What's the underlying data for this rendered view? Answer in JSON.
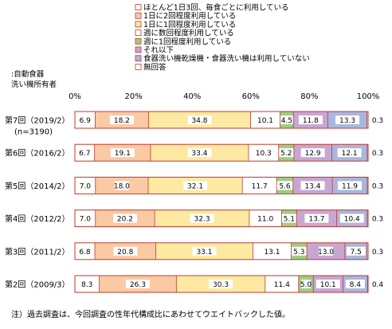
{
  "chart_data": {
    "type": "bar",
    "stacked": true,
    "orientation": "horizontal",
    "owner_label": [
      ":自動食器",
      "洗い機所有者"
    ],
    "x_ticks": [
      "0%",
      "20%",
      "40%",
      "60%",
      "80%",
      "100%"
    ],
    "xlim": [
      0,
      100
    ],
    "grid": false,
    "legend_position": "top",
    "categories": [
      {
        "label": "第7回（2019/2）",
        "sublabel": "(n=3190)"
      },
      {
        "label": "第6回（2016/2）",
        "sublabel": ""
      },
      {
        "label": "第5回（2014/2）",
        "sublabel": ""
      },
      {
        "label": "第4回（2012/2）",
        "sublabel": ""
      },
      {
        "label": "第3回（2011/2）",
        "sublabel": ""
      },
      {
        "label": "第2回（2009/3）",
        "sublabel": ""
      }
    ],
    "series": [
      {
        "name": "ほとんど1日3回、毎食ごとに利用している",
        "color": "#ffffff",
        "values": [
          6.9,
          6.7,
          7.0,
          7.0,
          6.8,
          8.3
        ]
      },
      {
        "name": "1日に2回程度利用している",
        "color": "#fbc9a4",
        "values": [
          18.2,
          19.1,
          18.0,
          20.2,
          20.8,
          26.3
        ]
      },
      {
        "name": "1日に1回程度利用している",
        "color": "#fde9a2",
        "values": [
          34.8,
          33.4,
          32.1,
          32.3,
          33.1,
          30.3
        ]
      },
      {
        "name": "週に数回程度利用している",
        "color": "#ffffff",
        "values": [
          10.1,
          10.3,
          11.7,
          11.0,
          13.1,
          11.4
        ]
      },
      {
        "name": "週に1回程度利用している",
        "color": "#9bcf82",
        "values": [
          4.5,
          5.2,
          5.6,
          5.1,
          5.3,
          5.0
        ]
      },
      {
        "name": "それ以下",
        "color": "#c8a6d2",
        "values": [
          11.8,
          12.9,
          13.4,
          13.7,
          13.0,
          10.1
        ]
      },
      {
        "name": "食器洗い機乾燥機・食器洗い機は利用していない",
        "color": "#a8b7df",
        "values": [
          13.3,
          12.1,
          11.9,
          10.4,
          7.5,
          8.4
        ]
      },
      {
        "name": "無回答",
        "color": "#ffffff",
        "values": [
          0.3,
          0.3,
          0.3,
          0.3,
          0.3,
          0.4
        ]
      }
    ],
    "border_color": "#c0392b"
  },
  "note": "注）過去調査は、今回調査の性年代構成比にあわせてウエイトバックした値。"
}
